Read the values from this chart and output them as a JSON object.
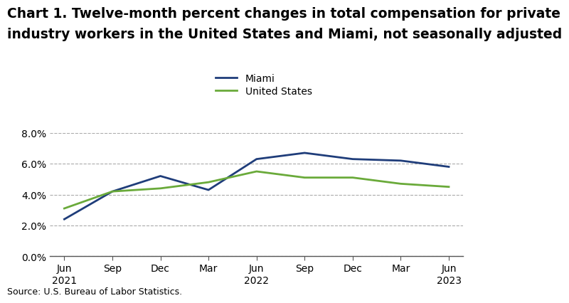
{
  "title_line1": "Chart 1. Twelve-month percent changes in total compensation for private",
  "title_line2": "industry workers in the United States and Miami, not seasonally adjusted",
  "x_labels": [
    "Jun\n2021",
    "Sep",
    "Dec",
    "Mar",
    "Jun\n2022",
    "Sep",
    "Dec",
    "Mar",
    "Jun\n2023"
  ],
  "miami_values": [
    2.4,
    4.2,
    5.2,
    4.3,
    6.3,
    6.7,
    6.3,
    6.2,
    5.8
  ],
  "us_values": [
    3.1,
    4.2,
    4.4,
    4.8,
    5.5,
    5.1,
    5.1,
    4.7,
    4.5
  ],
  "miami_color": "#1f3d7a",
  "us_color": "#6aaa3a",
  "ylim": [
    0.0,
    8.0
  ],
  "yticks": [
    0.0,
    2.0,
    4.0,
    6.0,
    8.0
  ],
  "ytick_labels": [
    "0.0%",
    "2.0%",
    "4.0%",
    "6.0%",
    "8.0%"
  ],
  "legend_miami": "Miami",
  "legend_us": "United States",
  "source_text": "Source: U.S. Bureau of Labor Statistics.",
  "background_color": "#ffffff",
  "grid_color": "#aaaaaa",
  "title_fontsize": 13.5,
  "label_fontsize": 10,
  "source_fontsize": 9,
  "legend_fontsize": 10,
  "line_width": 2.0
}
